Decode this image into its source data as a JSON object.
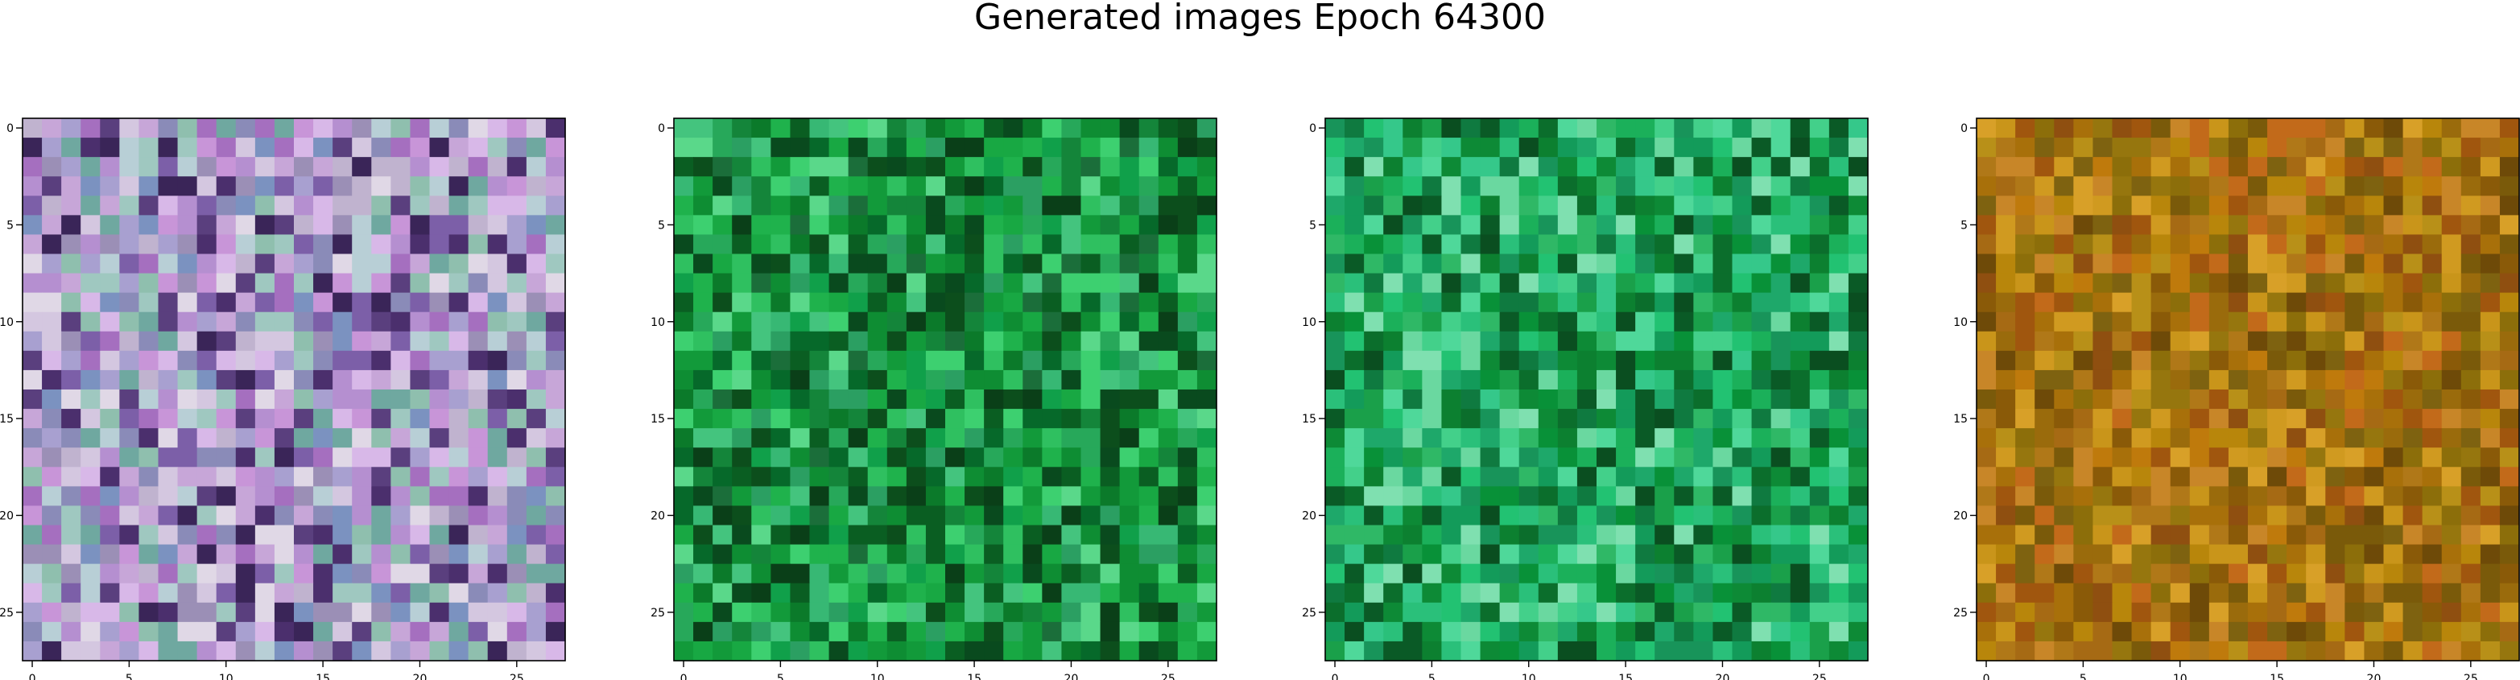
{
  "figure": {
    "title": "Generated images Epoch 64300"
  },
  "chart_data": [
    {
      "type": "heatmap",
      "title": "",
      "grid_size": [
        28,
        28
      ],
      "xticks": [
        "0",
        "5",
        "10",
        "15",
        "20",
        "25"
      ],
      "yticks": [
        "0",
        "5",
        "10",
        "15",
        "20",
        "25"
      ],
      "xlim": [
        -0.5,
        27.5
      ],
      "ylim": [
        27.5,
        -0.5
      ],
      "grid": false,
      "palette": [
        "#8a8bb8",
        "#a8a0d0",
        "#c0b3cf",
        "#9b8fb6",
        "#b8cfd6",
        "#d4c7e0",
        "#7c5fa8",
        "#5a3f7e",
        "#c7a6d8",
        "#a56fbf",
        "#6fa8a0",
        "#8fbfae",
        "#e0d8e6",
        "#4b2f6d",
        "#b58fd0",
        "#9fc8c0",
        "#d8b8e8",
        "#3a2558",
        "#7b92c0",
        "#c895d8"
      ]
    },
    {
      "type": "heatmap",
      "title": "",
      "grid_size": [
        28,
        28
      ],
      "xticks": [
        "0",
        "5",
        "10",
        "15",
        "20",
        "25"
      ],
      "yticks": [
        "0",
        "5",
        "10",
        "15",
        "20",
        "25"
      ],
      "xlim": [
        -0.5,
        27.5
      ],
      "ylim": [
        27.5,
        -0.5
      ],
      "grid": false,
      "palette": [
        "#0b7a2a",
        "#129a3a",
        "#0a5e22",
        "#1fb24c",
        "#2fc060",
        "#0e8d33",
        "#0c4e1c",
        "#18a843",
        "#3dd070",
        "#06692a",
        "#5ad88a",
        "#0a3f18",
        "#14853a",
        "#27a85a",
        "#2b9f62",
        "#094a1e",
        "#37b874",
        "#1b6e3a",
        "#10a04a",
        "#44c47e"
      ]
    },
    {
      "type": "heatmap",
      "title": "",
      "grid_size": [
        28,
        28
      ],
      "xticks": [
        "0",
        "5",
        "10",
        "15",
        "20",
        "25"
      ],
      "yticks": [
        "0",
        "5",
        "10",
        "15",
        "20",
        "25"
      ],
      "xlim": [
        -0.5,
        27.5
      ],
      "ylim": [
        27.5,
        -0.5
      ],
      "grid": false,
      "palette": [
        "#0d8a36",
        "#1aa04a",
        "#089138",
        "#2fb866",
        "#22c272",
        "#0b6e2c",
        "#43d08a",
        "#139b5a",
        "#0a5a26",
        "#6ad8a0",
        "#1bb05a",
        "#0f7a40",
        "#2ac07a",
        "#7fe0b0",
        "#0c8030",
        "#35c88a",
        "#18945a",
        "#0a4e20",
        "#4fd89a",
        "#1ea86a"
      ]
    },
    {
      "type": "heatmap",
      "title": "",
      "grid_size": [
        28,
        28
      ],
      "xticks": [
        "0",
        "5",
        "10",
        "15",
        "20",
        "25"
      ],
      "yticks": [
        "0",
        "5",
        "10",
        "15",
        "20",
        "25"
      ],
      "xlim": [
        -0.5,
        27.5
      ],
      "ylim": [
        27.5,
        -0.5
      ],
      "grid": false,
      "palette": [
        "#a8700a",
        "#b8860b",
        "#8a5a08",
        "#c9951a",
        "#9a6b0c",
        "#7a5a0a",
        "#d09a20",
        "#8f4f10",
        "#b07818",
        "#6e4a08",
        "#c88628",
        "#a66a14",
        "#96760e",
        "#bf7a0c",
        "#d8a028",
        "#7e6210",
        "#a0560e",
        "#b89018",
        "#c26a1a",
        "#8c6e0a"
      ]
    }
  ]
}
